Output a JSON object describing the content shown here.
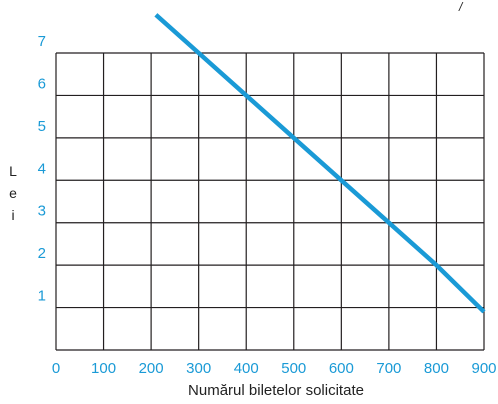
{
  "chart_data": {
    "type": "line",
    "title": "",
    "xlabel": "Numărul biletelor solicitate",
    "ylabel": "Lei",
    "xlim": [
      0,
      900
    ],
    "ylim": [
      0,
      7
    ],
    "x_ticks": [
      "0",
      "100",
      "200",
      "300",
      "400",
      "500",
      "600",
      "700",
      "800",
      "900"
    ],
    "y_ticks": [
      "1",
      "2",
      "3",
      "4",
      "5",
      "6",
      "7"
    ],
    "grid": true,
    "series": [
      {
        "x": [
          210,
          300,
          400,
          500,
          600,
          700,
          800,
          900
        ],
        "y": [
          7.9,
          7,
          6,
          5,
          4,
          3,
          2,
          0.9
        ],
        "color": "#1a9ad6"
      }
    ],
    "stray_mark": "/"
  }
}
